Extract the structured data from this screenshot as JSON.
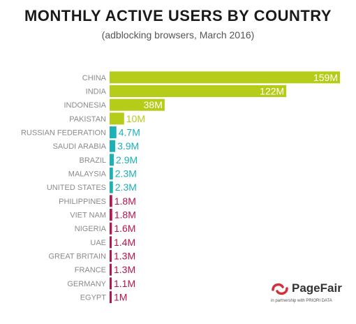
{
  "chart_data": {
    "type": "bar",
    "orientation": "horizontal",
    "title": "MONTHLY ACTIVE USERS BY COUNTRY",
    "subtitle": "(adblocking browsers, March 2016)",
    "unit": "M",
    "categories": [
      "CHINA",
      "INDIA",
      "INDONESIA",
      "PAKISTAN",
      "RUSSIAN FEDERATION",
      "SAUDI ARABIA",
      "BRAZIL",
      "MALAYSIA",
      "UNITED STATES",
      "PHILIPPINES",
      "VIET NAM",
      "NIGERIA",
      "UAE",
      "GREAT BRITAIN",
      "FRANCE",
      "GERMANY",
      "EGYPT"
    ],
    "values": [
      159,
      122,
      38,
      10,
      4.7,
      3.9,
      2.9,
      2.3,
      2.3,
      1.8,
      1.8,
      1.6,
      1.4,
      1.3,
      1.3,
      1.1,
      1
    ],
    "labels": [
      "159M",
      "122M",
      "38M",
      "10M",
      "4.7M",
      "3.9M",
      "2.9M",
      "2.3M",
      "2.3M",
      "1.8M",
      "1.8M",
      "1.6M",
      "1.4M",
      "1.3M",
      "1.3M",
      "1.1M",
      "1M"
    ],
    "groups": [
      0,
      0,
      0,
      0,
      1,
      1,
      1,
      1,
      1,
      2,
      2,
      2,
      2,
      2,
      2,
      2,
      2
    ],
    "colors": [
      "#b5cc18",
      "#1cb0b8",
      "#b8134f"
    ],
    "xlabel": "",
    "ylabel": "",
    "xlim": [
      0,
      159
    ],
    "grid": false,
    "legend": "none"
  },
  "logo": {
    "name": "PageFair",
    "tagline": "in partnership with PRIORI DATA",
    "color": "#d32f3a"
  }
}
